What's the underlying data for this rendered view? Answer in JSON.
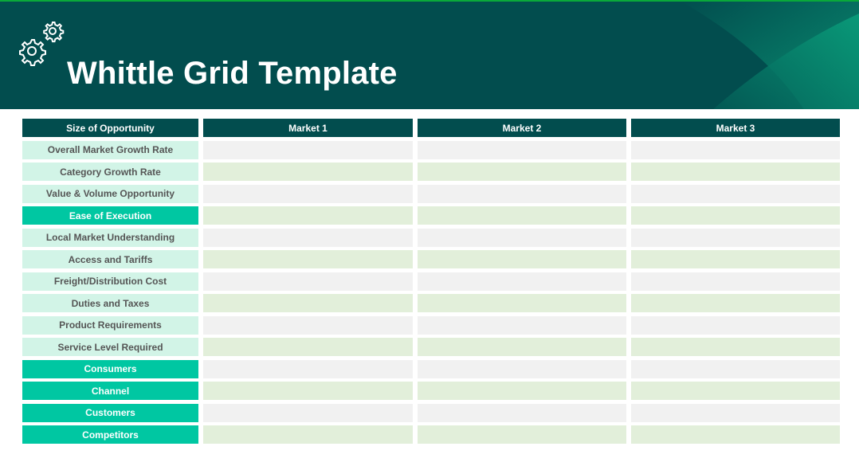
{
  "header": {
    "title": "Whittle Grid Template",
    "icon": "gears-icon"
  },
  "table": {
    "columns": [
      "Size of Opportunity",
      "Market 1",
      "Market 2",
      "Market 3"
    ],
    "rows": [
      {
        "label": "Overall Market Growth Rate",
        "type": "item"
      },
      {
        "label": "Category Growth Rate",
        "type": "item"
      },
      {
        "label": "Value & Volume Opportunity",
        "type": "item"
      },
      {
        "label": "Ease of Execution",
        "type": "section"
      },
      {
        "label": "Local Market Understanding",
        "type": "item"
      },
      {
        "label": "Access and Tariffs",
        "type": "item"
      },
      {
        "label": "Freight/Distribution Cost",
        "type": "item"
      },
      {
        "label": "Duties and Taxes",
        "type": "item"
      },
      {
        "label": "Product Requirements",
        "type": "item"
      },
      {
        "label": "Service Level Required",
        "type": "item"
      },
      {
        "label": "Consumers",
        "type": "section"
      },
      {
        "label": "Channel",
        "type": "section"
      },
      {
        "label": "Customers",
        "type": "section"
      },
      {
        "label": "Competitors",
        "type": "section"
      }
    ]
  },
  "colors": {
    "banner": "#024d4e",
    "header_cell": "#024d4e",
    "item_label": "#d2f4e7",
    "section_label": "#00c7a2",
    "cell_gray": "#f1f1f1",
    "cell_green": "#e2efda"
  }
}
